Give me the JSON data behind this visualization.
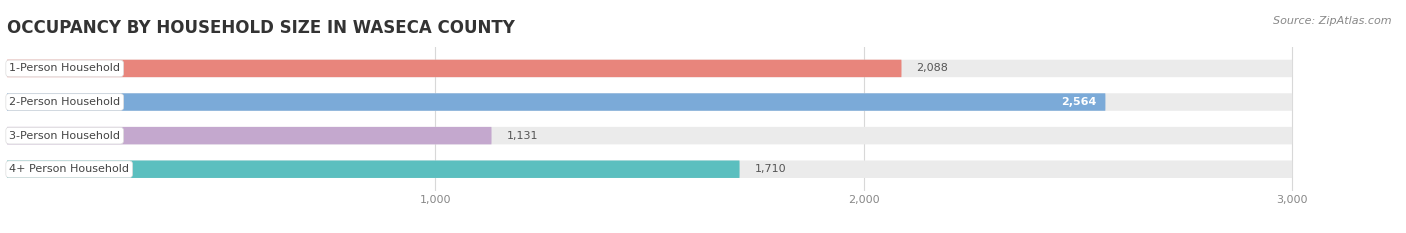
{
  "title": "OCCUPANCY BY HOUSEHOLD SIZE IN WASECA COUNTY",
  "source": "Source: ZipAtlas.com",
  "categories": [
    "1-Person Household",
    "2-Person Household",
    "3-Person Household",
    "4+ Person Household"
  ],
  "values": [
    2088,
    2564,
    1131,
    1710
  ],
  "colors": [
    "#E8857C",
    "#7BAAD8",
    "#C4A8CE",
    "#5BBFBF"
  ],
  "bar_height": 0.52,
  "xlim": [
    0,
    3200
  ],
  "x_max_display": 3000,
  "xticks": [
    1000,
    2000,
    3000
  ],
  "xtick_labels": [
    "1,000",
    "2,000",
    "3,000"
  ],
  "label_values": [
    "2,088",
    "2,564",
    "1,131",
    "1,710"
  ],
  "label_inside": [
    false,
    true,
    false,
    false
  ],
  "bg_color": "#ffffff",
  "bar_bg_color": "#ebebeb",
  "title_fontsize": 12,
  "source_fontsize": 8,
  "label_fontsize": 8,
  "category_fontsize": 8,
  "tick_fontsize": 8,
  "grid_color": "#d8d8d8"
}
